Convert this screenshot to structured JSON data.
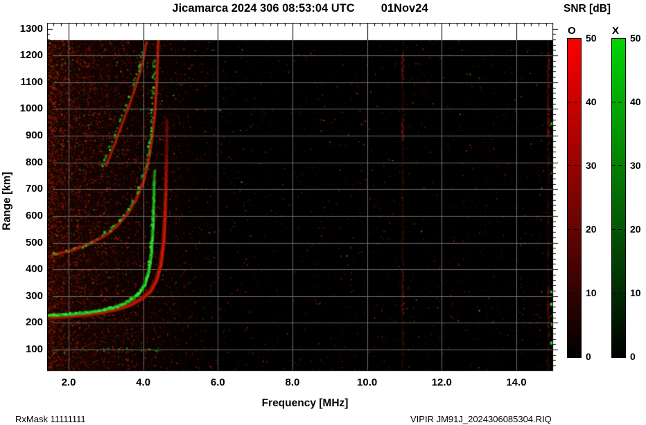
{
  "header": {
    "title": "Jicamarca 2024 306 08:53:04 UTC",
    "date": "01Nov24"
  },
  "footer": {
    "rx_mask": "RxMask 11111111",
    "file_id": "VIPIR  JM91J_2024306085304.RIQ"
  },
  "chart_data": {
    "type": "heatmap",
    "title": "Jicamarca 2024 306 08:53:04 UTC",
    "date_label": "01Nov24",
    "xlabel": "Frequency [MHz]",
    "ylabel": "Range [km]",
    "xlim": [
      1.42,
      15.0
    ],
    "ylim": [
      22,
      1320
    ],
    "data_top_km": 1258,
    "grid": true,
    "grid_color": "#6e6e6e",
    "background": "#000000",
    "x_ticks": {
      "values": [
        2,
        4,
        6,
        8,
        10,
        12,
        14
      ],
      "labels": [
        "2.0",
        "4.0",
        "6.0",
        "8.0",
        "10.0",
        "12.0",
        "14.0"
      ],
      "minor_step": 0.2
    },
    "y_ticks": {
      "values": [
        1300,
        1200,
        1100,
        1000,
        900,
        800,
        700,
        600,
        500,
        400,
        300,
        200,
        100
      ],
      "labels": [
        "1300",
        "1200",
        "1100",
        "1000",
        "900",
        "800",
        "700",
        "600",
        "500",
        "400",
        "300",
        "200",
        "100"
      ],
      "minor_step": 20
    },
    "colorbar": {
      "title": "SNR [dB]",
      "range": [
        0,
        50
      ],
      "tick_values": [
        50,
        40,
        30,
        20,
        10,
        0
      ],
      "bars": [
        {
          "label": "O",
          "gradient": [
            "#fb0000",
            "#700402",
            "#000000"
          ]
        },
        {
          "label": "X",
          "gradient": [
            "#00d400",
            "#045f04",
            "#000000"
          ]
        }
      ]
    },
    "traces": [
      {
        "name": "O-trace-1st-hop",
        "mode": "O",
        "style": "band",
        "width": 6,
        "core_color": "#f21c02",
        "halo_color": "#8c1404",
        "fade_above_km": 520,
        "points": [
          [
            1.42,
            221
          ],
          [
            1.9,
            225
          ],
          [
            2.4,
            231
          ],
          [
            2.9,
            240
          ],
          [
            3.3,
            252
          ],
          [
            3.65,
            268
          ],
          [
            3.95,
            290
          ],
          [
            4.2,
            321
          ],
          [
            4.35,
            361
          ],
          [
            4.47,
            420
          ],
          [
            4.54,
            500
          ],
          [
            4.58,
            595
          ],
          [
            4.6,
            700
          ],
          [
            4.62,
            830
          ],
          [
            4.63,
            960
          ]
        ]
      },
      {
        "name": "X-trace-1st-hop",
        "mode": "X",
        "style": "band-dots",
        "width": 5,
        "core_color": "#3bee3b",
        "halo_color": "#128a12",
        "fade_above_km": 480,
        "points": [
          [
            1.42,
            228
          ],
          [
            1.8,
            231
          ],
          [
            2.2,
            235
          ],
          [
            2.6,
            241
          ],
          [
            2.9,
            248
          ],
          [
            3.2,
            258
          ],
          [
            3.5,
            273
          ],
          [
            3.7,
            290
          ],
          [
            3.9,
            314
          ],
          [
            4.05,
            348
          ],
          [
            4.15,
            395
          ],
          [
            4.22,
            465
          ],
          [
            4.26,
            565
          ],
          [
            4.28,
            670
          ],
          [
            4.3,
            770
          ]
        ]
      },
      {
        "name": "O-trace-2nd-hop",
        "mode": "O",
        "style": "band",
        "width": 5,
        "core_color": "#c42108",
        "halo_color": "#6d1205",
        "fade_above_km": 1150,
        "points": [
          [
            1.55,
            455
          ],
          [
            2.1,
            473
          ],
          [
            2.55,
            497
          ],
          [
            3.0,
            530
          ],
          [
            3.3,
            565
          ],
          [
            3.6,
            615
          ],
          [
            3.8,
            662
          ],
          [
            4.0,
            730
          ],
          [
            4.12,
            800
          ],
          [
            4.22,
            880
          ],
          [
            4.3,
            980
          ],
          [
            4.35,
            1080
          ],
          [
            4.38,
            1190
          ],
          [
            4.4,
            1258
          ]
        ]
      },
      {
        "name": "X-trace-2nd-hop",
        "mode": "X",
        "style": "dots",
        "width": 3,
        "core_color": "#2ad42a",
        "halo_color": "#1a9e1a",
        "fade_above_km": 1230,
        "points": [
          [
            1.42,
            452
          ],
          [
            1.7,
            458
          ],
          [
            2.0,
            468
          ],
          [
            2.3,
            482
          ],
          [
            2.6,
            501
          ],
          [
            2.9,
            525
          ],
          [
            3.2,
            557
          ],
          [
            3.5,
            601
          ],
          [
            3.7,
            646
          ],
          [
            3.9,
            706
          ],
          [
            4.02,
            757
          ],
          [
            4.12,
            820
          ],
          [
            4.19,
            893
          ],
          [
            4.24,
            985
          ],
          [
            4.27,
            1085
          ],
          [
            4.3,
            1185
          ]
        ]
      },
      {
        "name": "O-trace-3rd-hop",
        "mode": "O",
        "style": "band",
        "width": 4,
        "core_color": "#a81d07",
        "halo_color": "#5c1004",
        "fade_above_km": 1220,
        "points": [
          [
            3.0,
            790
          ],
          [
            3.2,
            860
          ],
          [
            3.4,
            935
          ],
          [
            3.6,
            1010
          ],
          [
            3.8,
            1090
          ],
          [
            3.97,
            1170
          ],
          [
            4.08,
            1250
          ]
        ]
      },
      {
        "name": "X-trace-3rd-hop",
        "mode": "X",
        "style": "dots",
        "width": 3,
        "core_color": "#28c828",
        "halo_color": "#178f17",
        "fade_above_km": 1240,
        "points": [
          [
            2.88,
            785
          ],
          [
            3.05,
            835
          ],
          [
            3.25,
            905
          ],
          [
            3.45,
            980
          ],
          [
            3.65,
            1055
          ],
          [
            3.85,
            1135
          ],
          [
            3.98,
            1215
          ],
          [
            4.04,
            1258
          ]
        ]
      },
      {
        "name": "E-region-echoes",
        "mode": "X",
        "style": "specks",
        "width": 2,
        "core_color": "#2fbf2f",
        "halo_color": "#1d8a1d",
        "fade_above_km": 1300,
        "points": [
          [
            2.4,
            103
          ],
          [
            2.7,
            100
          ],
          [
            3.0,
            102
          ],
          [
            3.3,
            99
          ],
          [
            3.6,
            101
          ],
          [
            3.9,
            100
          ],
          [
            4.1,
            102
          ],
          [
            4.35,
            100
          ],
          [
            1.6,
            95
          ],
          [
            1.9,
            98
          ]
        ]
      }
    ],
    "rfi_columns": [
      {
        "freq_mhz": 10.95,
        "color": "#a81c06",
        "bright_bands_km": [
          [
            1115,
            1213
          ],
          [
            880,
            965
          ],
          [
            235,
            398
          ]
        ],
        "green_blobs_km": []
      },
      {
        "freq_mhz": 14.85,
        "color": "#a81c06",
        "bright_bands_km": [
          [
            900,
            1215
          ],
          [
            180,
            340
          ]
        ],
        "green_blobs_km": [
          950,
          770,
          320,
          275,
          235,
          200,
          130
        ]
      }
    ],
    "noise": {
      "red_speckle": {
        "count_uniform": 4200,
        "count_left_biased": 5400,
        "colors": [
          "#6e1407",
          "#8c1a08",
          "#b22408",
          "#d42f0a"
        ]
      },
      "red_streaks": {
        "count": 150,
        "max_freq_mhz": 6.5
      },
      "green_speckle": {
        "count": 470,
        "colors": [
          "#1d7a1d",
          "#2aa82a",
          "#3ccf3c"
        ]
      }
    }
  }
}
